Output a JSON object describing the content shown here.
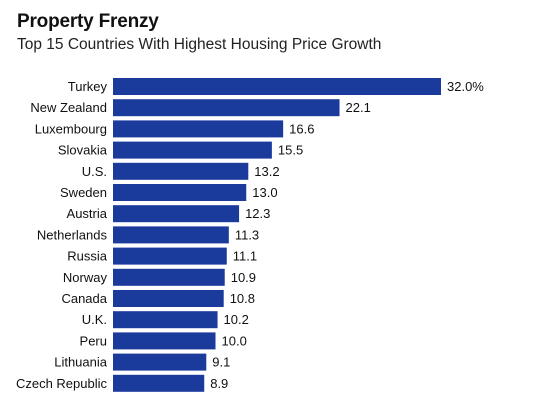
{
  "header": {
    "title": "Property Frenzy",
    "subtitle": "Top 15 Countries With Highest Housing Price Growth"
  },
  "chart_data": {
    "type": "bar",
    "orientation": "horizontal",
    "title": "Property Frenzy",
    "subtitle": "Top 15 Countries With Highest Housing Price Growth",
    "categories": [
      "Turkey",
      "New Zealand",
      "Luxembourg",
      "Slovakia",
      "U.S.",
      "Sweden",
      "Austria",
      "Netherlands",
      "Russia",
      "Norway",
      "Canada",
      "U.K.",
      "Peru",
      "Lithuania",
      "Czech Republic"
    ],
    "values": [
      32.0,
      22.1,
      16.6,
      15.5,
      13.2,
      13.0,
      12.3,
      11.3,
      11.1,
      10.9,
      10.8,
      10.2,
      10.0,
      9.1,
      8.9
    ],
    "value_labels": [
      "32.0%",
      "22.1",
      "16.6",
      "15.5",
      "13.2",
      "13.0",
      "12.3",
      "11.3",
      "11.1",
      "10.9",
      "10.8",
      "10.2",
      "10.0",
      "9.1",
      "8.9"
    ],
    "xlim": [
      0,
      32
    ],
    "bar_color": "#1a3a9c",
    "grid": false,
    "legend": false
  }
}
